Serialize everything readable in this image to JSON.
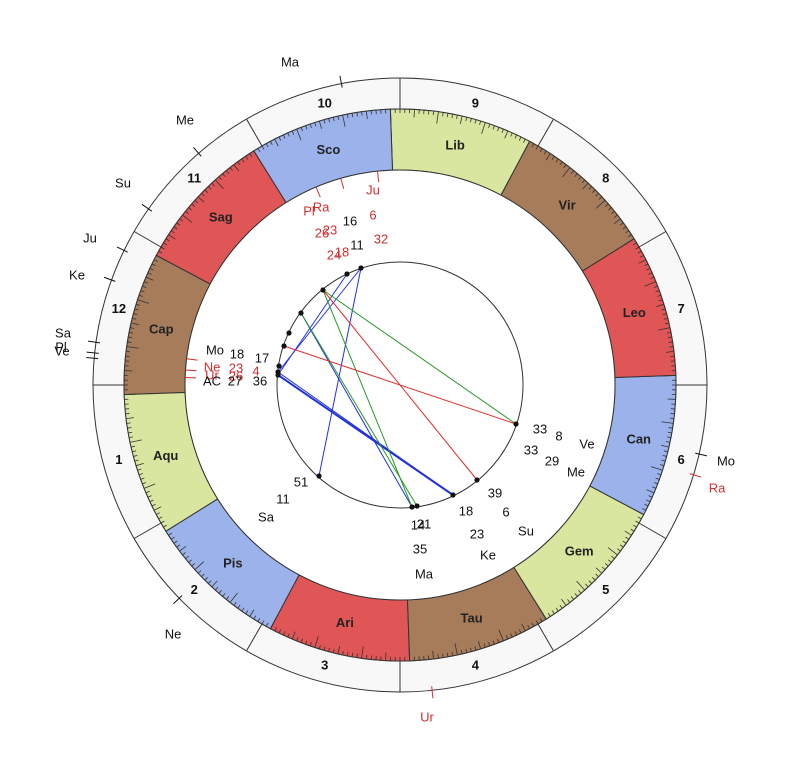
{
  "signs": [
    "Ari",
    "Tau",
    "Gem",
    "Can",
    "Leo",
    "Vir",
    "Lib",
    "Sco",
    "Sag",
    "Cap",
    "Aqu",
    "Pis"
  ],
  "houses": [
    "1",
    "2",
    "3",
    "4",
    "5",
    "6",
    "7",
    "8",
    "9",
    "10",
    "11",
    "12"
  ],
  "outer_labels": [
    "Ma",
    "Me",
    "Su",
    "Ju",
    "Ke",
    "Sa",
    "Pl",
    "Ve",
    "Mo",
    "Ra",
    "Ur",
    "Ne"
  ],
  "inner_labels": [
    "Ju",
    "Pl",
    "Ra",
    "16",
    "6",
    "23",
    "26",
    "32",
    "11",
    "18",
    "24",
    "Mo",
    "18",
    "17",
    "Ne",
    "23",
    "4",
    "Ur",
    "26",
    "AC",
    "27",
    "36",
    "33",
    "8",
    "33",
    "Ve",
    "29",
    "Me",
    "39",
    "18",
    "6",
    "23",
    "Su",
    "Ke",
    "14",
    "21",
    "35",
    "Ma",
    "51",
    "11",
    "Sa"
  ]
}
